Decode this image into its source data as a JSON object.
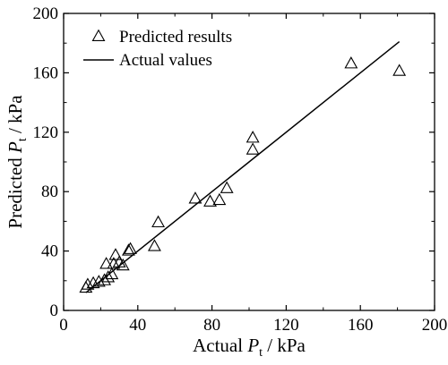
{
  "chart_data": {
    "type": "scatter",
    "xlabel": {
      "main": "Actual ",
      "var": "P",
      "sub": "t",
      "rest": " / kPa"
    },
    "ylabel": {
      "main": "Predicted ",
      "var": "P",
      "sub": "t",
      "rest": " / kPa"
    },
    "xlim": [
      0,
      200
    ],
    "ylim": [
      0,
      200
    ],
    "xticks": [
      0,
      40,
      80,
      120,
      160,
      200
    ],
    "yticks": [
      0,
      40,
      80,
      120,
      160,
      200
    ],
    "grid": false,
    "legend_position": "top-left",
    "series": [
      {
        "name": "Predicted results",
        "marker": "triangle-open",
        "color": "#000000",
        "points": [
          [
            12,
            15
          ],
          [
            13,
            17
          ],
          [
            16,
            18
          ],
          [
            19,
            19
          ],
          [
            22,
            20
          ],
          [
            23,
            31
          ],
          [
            24,
            22
          ],
          [
            26,
            24
          ],
          [
            27,
            31
          ],
          [
            28,
            37
          ],
          [
            30,
            32
          ],
          [
            32,
            30
          ],
          [
            35,
            40
          ],
          [
            36,
            41
          ],
          [
            49,
            43
          ],
          [
            51,
            59
          ],
          [
            71,
            75
          ],
          [
            79,
            73
          ],
          [
            84,
            74
          ],
          [
            88,
            82
          ],
          [
            102,
            108
          ],
          [
            102,
            116
          ],
          [
            155,
            166
          ],
          [
            181,
            161
          ]
        ]
      },
      {
        "name": "Actual values",
        "type": "line",
        "color": "#000000",
        "points": [
          [
            12,
            12
          ],
          [
            181,
            181
          ]
        ]
      }
    ]
  }
}
